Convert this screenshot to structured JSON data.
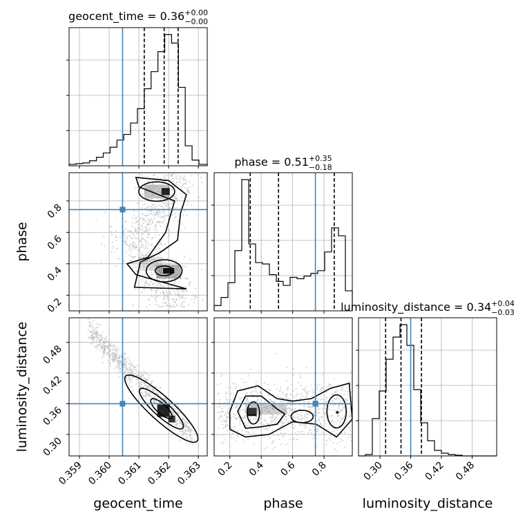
{
  "chart_data": {
    "type": "corner",
    "parameters": [
      "geocent_time",
      "phase",
      "luminosity_distance"
    ],
    "injection": {
      "geocent_time": 0.36045,
      "phase": 0.745,
      "luminosity_distance": 0.36
    },
    "titles": {
      "geocent_time": {
        "name": "geocent_time",
        "median": "0.36",
        "upper": "+0.00",
        "lower": "−0.00"
      },
      "phase": {
        "name": "phase",
        "median": "0.51",
        "upper": "+0.35",
        "lower": "−0.18"
      },
      "luminosity_distance": {
        "name": "luminosity_distance",
        "median": "0.34",
        "upper": "+0.04",
        "lower": "−0.03"
      }
    },
    "axes": {
      "geocent_time": {
        "range": [
          0.35865,
          0.3633
        ],
        "ticks": [
          "0.359",
          "0.360",
          "0.361",
          "0.362",
          "0.363"
        ],
        "label": "geocent_time"
      },
      "phase": {
        "range": [
          0.1,
          0.98
        ],
        "ticks": [
          "0.2",
          "0.4",
          "0.6",
          "0.8"
        ],
        "label": "phase"
      },
      "luminosity_distance": {
        "range": [
          0.258,
          0.528
        ],
        "ticks": [
          "0.30",
          "0.36",
          "0.42",
          "0.48"
        ],
        "label": "luminosity_distance"
      }
    },
    "histograms": {
      "geocent_time": {
        "edges": [
          0.35865,
          0.35888,
          0.35911,
          0.35934,
          0.35957,
          0.3598,
          0.36003,
          0.36026,
          0.36049,
          0.36072,
          0.36095,
          0.36118,
          0.36141,
          0.36164,
          0.36187,
          0.3621,
          0.36233,
          0.36256,
          0.36279,
          0.36302,
          0.3633
        ],
        "counts": [
          0.01,
          0.015,
          0.02,
          0.035,
          0.06,
          0.09,
          0.13,
          0.18,
          0.22,
          0.3,
          0.4,
          0.54,
          0.66,
          0.8,
          0.92,
          0.86,
          0.55,
          0.14,
          0.04,
          0.01
        ],
        "quantiles": [
          0.36118,
          0.36185,
          0.36232
        ]
      },
      "phase": {
        "edges": [
          0.1,
          0.144,
          0.188,
          0.232,
          0.276,
          0.32,
          0.364,
          0.408,
          0.452,
          0.496,
          0.54,
          0.584,
          0.628,
          0.672,
          0.716,
          0.76,
          0.804,
          0.848,
          0.892,
          0.936,
          0.98
        ],
        "counts": [
          0.04,
          0.1,
          0.21,
          0.45,
          0.98,
          0.5,
          0.36,
          0.35,
          0.27,
          0.22,
          0.19,
          0.25,
          0.24,
          0.26,
          0.28,
          0.3,
          0.44,
          0.62,
          0.56,
          0.15
        ],
        "quantiles": [
          0.33,
          0.51,
          0.865
        ]
      },
      "luminosity_distance": {
        "edges": [
          0.258,
          0.2715,
          0.285,
          0.2985,
          0.312,
          0.3255,
          0.339,
          0.3525,
          0.366,
          0.3795,
          0.393,
          0.4065,
          0.42,
          0.4335,
          0.447,
          0.4605,
          0.474,
          0.4875,
          0.501,
          0.5145,
          0.528
        ],
        "counts": [
          0.0,
          0.01,
          0.27,
          0.47,
          0.7,
          0.86,
          0.95,
          0.8,
          0.48,
          0.24,
          0.11,
          0.04,
          0.02,
          0.01,
          0.005,
          0.0,
          0.0,
          0.0,
          0.0,
          0.0
        ],
        "quantiles": [
          0.311,
          0.341,
          0.381
        ]
      }
    },
    "grid": true
  }
}
